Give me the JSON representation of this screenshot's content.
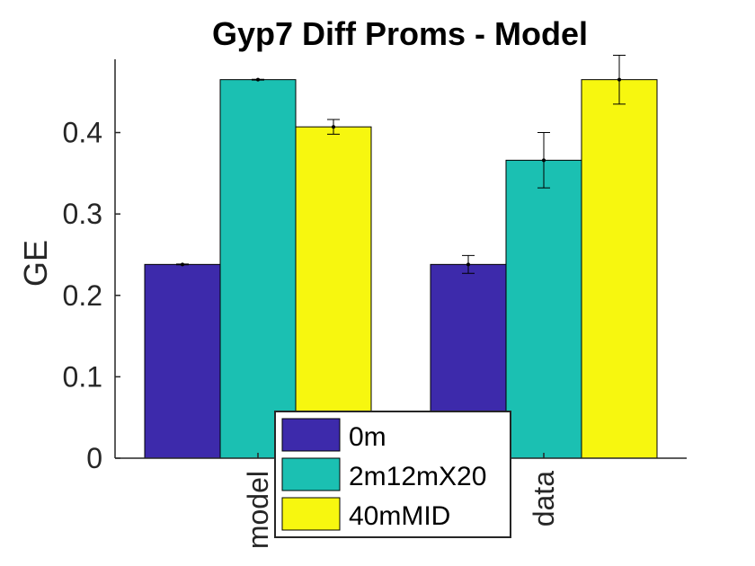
{
  "chart_data": {
    "type": "bar",
    "title": "Gyp7 Diff Proms - Model",
    "xlabel": "",
    "ylabel": "GE",
    "categories": [
      "model",
      "data"
    ],
    "ylim": [
      0,
      0.49
    ],
    "yticks": [
      0,
      0.1,
      0.2,
      0.3,
      0.4
    ],
    "ytick_labels": [
      "0",
      "0.1",
      "0.2",
      "0.3",
      "0.4"
    ],
    "grid": false,
    "legend_position": "bottom-center",
    "series": [
      {
        "name": "0m",
        "color": "#3d2aab",
        "values": [
          0.238,
          0.238
        ],
        "errors": [
          0.0005,
          0.011
        ]
      },
      {
        "name": "2m12mX20",
        "color": "#1bc0b2",
        "values": [
          0.465,
          0.366
        ],
        "errors": [
          0.0005,
          0.034
        ]
      },
      {
        "name": "40mMID",
        "color": "#f7f70f",
        "values": [
          0.407,
          0.465
        ],
        "errors": [
          0.009,
          0.03
        ]
      }
    ]
  }
}
